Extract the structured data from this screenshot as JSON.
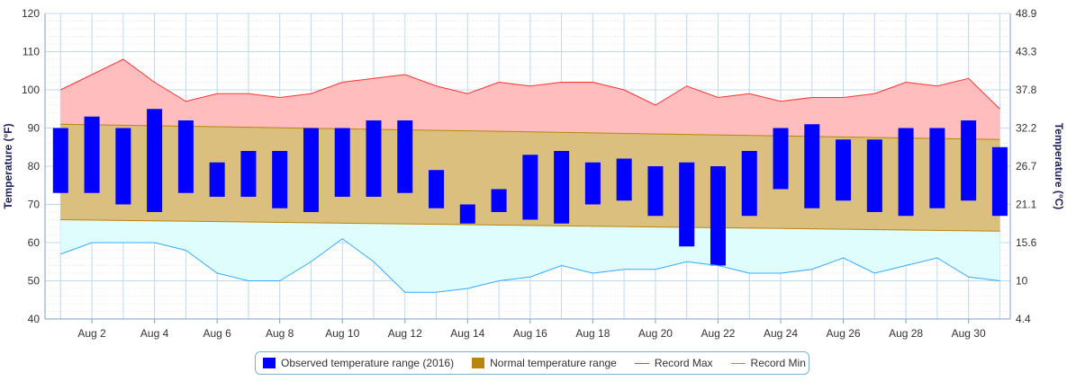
{
  "chart_data": {
    "type": "bar",
    "title": "",
    "y_left": {
      "label": "Temperature (°F)",
      "ticks": [
        "120",
        "110",
        "100",
        "90",
        "80",
        "70",
        "60",
        "50",
        "40"
      ],
      "ylim": [
        40,
        120
      ]
    },
    "y_right": {
      "label": "Temperature (°C)",
      "ticks": [
        "48.9",
        "43.3",
        "37.8",
        "32.2",
        "26.7",
        "21.1",
        "15.6",
        "10",
        "4.4"
      ]
    },
    "x": {
      "tick_labels": [
        "Aug 2",
        "Aug 4",
        "Aug 6",
        "Aug 8",
        "Aug 10",
        "Aug 12",
        "Aug 14",
        "Aug 16",
        "Aug 18",
        "Aug 20",
        "Aug 22",
        "Aug 24",
        "Aug 26",
        "Aug 28",
        "Aug 30"
      ],
      "days": [
        1,
        31
      ]
    },
    "grid": true,
    "legend_placement": "bottom-center",
    "series": [
      {
        "name": "Observed temperature range (2016)",
        "kind": "floating-bar",
        "color": "#0000ff",
        "low": [
          73,
          73,
          70,
          68,
          73,
          72,
          72,
          69,
          68,
          72,
          72,
          73,
          69,
          65,
          68,
          66,
          65,
          70,
          71,
          67,
          59,
          54,
          67,
          74,
          69,
          71,
          68,
          67,
          69,
          71,
          67
        ],
        "high": [
          90,
          93,
          90,
          95,
          92,
          81,
          84,
          84,
          90,
          90,
          92,
          92,
          79,
          70,
          74,
          83,
          84,
          81,
          82,
          80,
          81,
          80,
          84,
          90,
          91,
          87,
          87,
          90,
          90,
          92,
          85
        ]
      },
      {
        "name": "Normal temperature range",
        "kind": "area-range",
        "color": "#b8860b",
        "low_start": 66,
        "low_end": 63,
        "high_start": 91,
        "high_end": 87
      },
      {
        "name": "Record Max",
        "kind": "line",
        "color": "#ff3333",
        "values": [
          100,
          104,
          108,
          102,
          97,
          99,
          99,
          98,
          99,
          102,
          103,
          104,
          101,
          99,
          102,
          101,
          102,
          102,
          100,
          96,
          101,
          98,
          99,
          97,
          98,
          98,
          99,
          102,
          101,
          103,
          95
        ]
      },
      {
        "name": "Record Min",
        "kind": "line",
        "color": "#33aaff",
        "values": [
          57,
          60,
          60,
          60,
          58,
          52,
          50,
          50,
          55,
          61,
          55,
          47,
          47,
          48,
          50,
          51,
          54,
          52,
          53,
          53,
          55,
          54,
          52,
          52,
          53,
          56,
          52,
          54,
          56,
          51,
          50
        ]
      }
    ]
  }
}
